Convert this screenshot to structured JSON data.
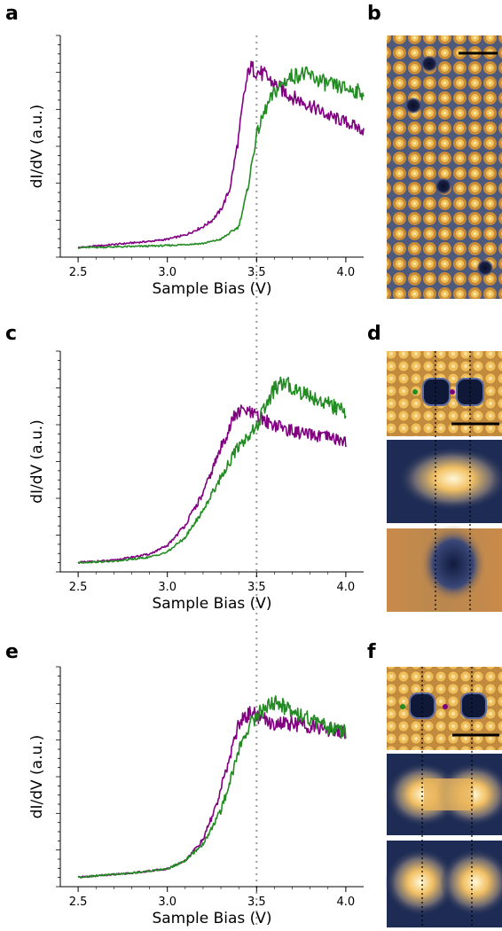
{
  "panels": {
    "a": "a",
    "b": "b",
    "c": "c",
    "d": "d",
    "e": "e",
    "f": "f"
  },
  "colors": {
    "series_1": "#800080",
    "series_2": "#228b22",
    "reference_line": "#999999"
  },
  "chart_data": [
    {
      "type": "line",
      "panel": "a",
      "xlabel": "Sample Bias (V)",
      "ylabel": "dI/dV (a.u.)",
      "xlim": [
        2.4,
        4.1
      ],
      "ylim": [
        0,
        1
      ],
      "xticks": [
        "2.5",
        "3.0",
        "3.5",
        "4.0"
      ],
      "xtick_values": [
        2.5,
        3.0,
        3.5,
        4.0
      ],
      "reference_x": 3.5,
      "series": [
        {
          "color": "#800080",
          "x": [
            2.5,
            2.7,
            2.9,
            3.0,
            3.1,
            3.2,
            3.25,
            3.3,
            3.35,
            3.4,
            3.43,
            3.46,
            3.49,
            3.55,
            3.6,
            3.7,
            3.8,
            3.9,
            4.0,
            4.1
          ],
          "y": [
            0.02,
            0.035,
            0.05,
            0.06,
            0.08,
            0.12,
            0.15,
            0.2,
            0.3,
            0.55,
            0.75,
            0.88,
            0.87,
            0.84,
            0.8,
            0.74,
            0.7,
            0.65,
            0.62,
            0.58
          ]
        },
        {
          "color": "#228b22",
          "x": [
            2.5,
            2.8,
            3.0,
            3.2,
            3.3,
            3.4,
            3.45,
            3.5,
            3.55,
            3.6,
            3.65,
            3.7,
            3.75,
            3.8,
            3.9,
            4.0,
            4.1
          ],
          "y": [
            0.02,
            0.025,
            0.03,
            0.04,
            0.06,
            0.12,
            0.3,
            0.56,
            0.68,
            0.76,
            0.81,
            0.84,
            0.85,
            0.84,
            0.8,
            0.78,
            0.76
          ]
        }
      ]
    },
    {
      "type": "line",
      "panel": "c",
      "xlabel": "Sample Bias (V)",
      "ylabel": "dI/dV (a.u.)",
      "xlim": [
        2.4,
        4.1
      ],
      "ylim": [
        0,
        1
      ],
      "xticks": [
        "2.5",
        "3.0",
        "3.5",
        "4.0"
      ],
      "xtick_values": [
        2.5,
        3.0,
        3.5,
        4.0
      ],
      "reference_x": 3.5,
      "series": [
        {
          "color": "#800080",
          "x": [
            2.5,
            2.7,
            2.9,
            3.0,
            3.1,
            3.2,
            3.3,
            3.38,
            3.43,
            3.5,
            3.6,
            3.7,
            3.8,
            3.9,
            4.0
          ],
          "y": [
            0.02,
            0.03,
            0.06,
            0.1,
            0.2,
            0.35,
            0.57,
            0.73,
            0.75,
            0.72,
            0.68,
            0.65,
            0.63,
            0.62,
            0.6
          ]
        },
        {
          "color": "#228b22",
          "x": [
            2.5,
            2.7,
            2.9,
            3.0,
            3.1,
            3.2,
            3.3,
            3.4,
            3.5,
            3.55,
            3.6,
            3.65,
            3.7,
            3.8,
            3.9,
            4.0
          ],
          "y": [
            0.02,
            0.025,
            0.045,
            0.07,
            0.14,
            0.27,
            0.43,
            0.58,
            0.67,
            0.77,
            0.85,
            0.88,
            0.86,
            0.82,
            0.78,
            0.74
          ]
        }
      ]
    },
    {
      "type": "line",
      "panel": "e",
      "xlabel": "Sample Bias (V)",
      "ylabel": "dI/dV (a.u.)",
      "xlim": [
        2.4,
        4.1
      ],
      "ylim": [
        0,
        1
      ],
      "xticks": [
        "2.5",
        "3.0",
        "3.5",
        "4.0"
      ],
      "xtick_values": [
        2.5,
        3.0,
        3.5,
        4.0
      ],
      "reference_x": 3.5,
      "series": [
        {
          "color": "#800080",
          "x": [
            2.5,
            2.8,
            3.0,
            3.1,
            3.2,
            3.28,
            3.35,
            3.4,
            3.47,
            3.5,
            3.6,
            3.7,
            3.8,
            3.9,
            4.0
          ],
          "y": [
            0.02,
            0.04,
            0.06,
            0.1,
            0.2,
            0.38,
            0.6,
            0.76,
            0.82,
            0.8,
            0.76,
            0.76,
            0.75,
            0.73,
            0.72
          ]
        },
        {
          "color": "#228b22",
          "x": [
            2.5,
            2.8,
            3.0,
            3.1,
            3.2,
            3.3,
            3.35,
            3.4,
            3.45,
            3.5,
            3.55,
            3.6,
            3.7,
            3.8,
            3.9,
            4.0
          ],
          "y": [
            0.02,
            0.04,
            0.06,
            0.1,
            0.18,
            0.34,
            0.48,
            0.63,
            0.74,
            0.8,
            0.84,
            0.86,
            0.83,
            0.78,
            0.74,
            0.72
          ]
        }
      ]
    }
  ]
}
